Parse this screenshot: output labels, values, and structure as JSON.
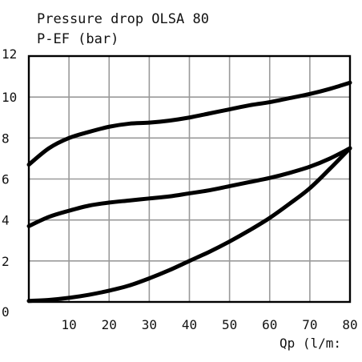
{
  "chart_data": {
    "type": "line",
    "title": "Pressure drop OLSA 80",
    "ylabel": "P-EF (bar)",
    "xlabel": "Qp (l/m:",
    "xlim": [
      0,
      80
    ],
    "ylim": [
      0,
      12
    ],
    "grid": true,
    "x_ticks": [
      "10",
      "20",
      "30",
      "40",
      "50",
      "60",
      "70",
      "80"
    ],
    "y_ticks": [
      "0",
      "2",
      "4",
      "6",
      "8",
      "10",
      "12"
    ],
    "series": [
      {
        "x": [
          0,
          5,
          10,
          15,
          20,
          25,
          30,
          35,
          40,
          45,
          50,
          55,
          60,
          65,
          70,
          75,
          80
        ],
        "values": [
          6.7,
          7.5,
          8.0,
          8.3,
          8.55,
          8.7,
          8.75,
          8.85,
          9.0,
          9.2,
          9.4,
          9.6,
          9.75,
          9.95,
          10.15,
          10.4,
          10.7
        ]
      },
      {
        "x": [
          0,
          5,
          10,
          15,
          20,
          25,
          30,
          35,
          40,
          45,
          50,
          55,
          60,
          65,
          70,
          75,
          80
        ],
        "values": [
          3.7,
          4.15,
          4.45,
          4.7,
          4.85,
          4.95,
          5.05,
          5.15,
          5.3,
          5.45,
          5.65,
          5.85,
          6.05,
          6.3,
          6.6,
          7.0,
          7.5
        ]
      },
      {
        "x": [
          0,
          5,
          10,
          15,
          20,
          25,
          30,
          35,
          40,
          45,
          50,
          55,
          60,
          65,
          70,
          75,
          80
        ],
        "values": [
          0.05,
          0.1,
          0.2,
          0.35,
          0.55,
          0.8,
          1.15,
          1.55,
          2.0,
          2.45,
          2.95,
          3.5,
          4.1,
          4.8,
          5.55,
          6.5,
          7.5
        ]
      }
    ]
  }
}
